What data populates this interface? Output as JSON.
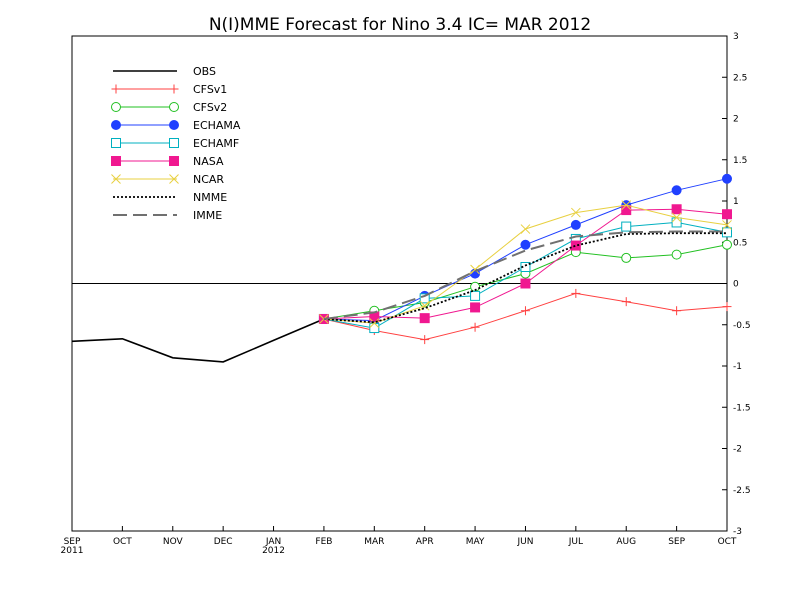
{
  "chart_data": {
    "type": "line",
    "title": "N(I)MME Forecast for Nino 3.4   IC= MAR 2012",
    "x_labels": [
      {
        "month": "SEP",
        "year": "2011"
      },
      {
        "month": "OCT",
        "year": ""
      },
      {
        "month": "NOV",
        "year": ""
      },
      {
        "month": "DEC",
        "year": ""
      },
      {
        "month": "JAN",
        "year": "2012"
      },
      {
        "month": "FEB",
        "year": ""
      },
      {
        "month": "MAR",
        "year": ""
      },
      {
        "month": "APR",
        "year": ""
      },
      {
        "month": "MAY",
        "year": ""
      },
      {
        "month": "JUN",
        "year": ""
      },
      {
        "month": "JUL",
        "year": ""
      },
      {
        "month": "AUG",
        "year": ""
      },
      {
        "month": "SEP",
        "year": ""
      },
      {
        "month": "OCT",
        "year": ""
      }
    ],
    "ylim": [
      -3,
      3
    ],
    "y_ticks": [
      "3",
      "2.5",
      "2",
      "1.5",
      "1",
      "0.5",
      "0",
      "-0.5",
      "-1",
      "-1.5",
      "-2",
      "-2.5",
      "-3"
    ],
    "y_axis_side": "right",
    "zero_line": true,
    "legend_position": "top-left",
    "series": [
      {
        "name": "OBS",
        "color": "#000000",
        "marker": "none",
        "dash": "solid",
        "start_index": 0,
        "values": [
          -0.7,
          -0.67,
          -0.9,
          -0.95,
          -0.69,
          -0.43
        ]
      },
      {
        "name": "CFSv1",
        "color": "#ff4040",
        "marker": "plus",
        "dash": "solid",
        "start_index": 5,
        "values": [
          -0.43,
          -0.57,
          -0.68,
          -0.53,
          -0.33,
          -0.12,
          -0.22,
          -0.33,
          -0.28
        ]
      },
      {
        "name": "CFSv2",
        "color": "#22c022",
        "marker": "circle-open",
        "dash": "solid",
        "start_index": 5,
        "values": [
          -0.43,
          -0.33,
          -0.23,
          -0.04,
          0.12,
          0.38,
          0.31,
          0.35,
          0.47
        ]
      },
      {
        "name": "ECHAMA",
        "color": "#2040ff",
        "marker": "circle-filled",
        "dash": "solid",
        "start_index": 5,
        "values": [
          -0.43,
          -0.45,
          -0.15,
          0.12,
          0.47,
          0.71,
          0.95,
          1.13,
          1.27
        ]
      },
      {
        "name": "ECHAMF",
        "color": "#00b0c0",
        "marker": "square-open",
        "dash": "solid",
        "start_index": 5,
        "values": [
          -0.43,
          -0.54,
          -0.18,
          -0.15,
          0.2,
          0.54,
          0.69,
          0.74,
          0.62
        ]
      },
      {
        "name": "NASA",
        "color": "#f01890",
        "marker": "square-filled",
        "dash": "solid",
        "start_index": 5,
        "values": [
          -0.43,
          -0.4,
          -0.42,
          -0.29,
          0.0,
          0.46,
          0.89,
          0.9,
          0.84
        ]
      },
      {
        "name": "NCAR",
        "color": "#e8d040",
        "marker": "cross",
        "dash": "solid",
        "start_index": 5,
        "values": [
          -0.43,
          -0.48,
          -0.27,
          0.17,
          0.66,
          0.86,
          0.95,
          0.8,
          0.71
        ]
      },
      {
        "name": "NMME",
        "color": "#000000",
        "marker": "none",
        "dash": "dotted",
        "start_index": 5,
        "values": [
          -0.43,
          -0.47,
          -0.3,
          -0.08,
          0.22,
          0.46,
          0.6,
          0.61,
          0.61
        ]
      },
      {
        "name": "IMME",
        "color": "#707070",
        "marker": "none",
        "dash": "longdash",
        "start_index": 5,
        "values": [
          -0.43,
          -0.35,
          -0.15,
          0.15,
          0.4,
          0.57,
          0.62,
          0.63,
          0.63
        ]
      }
    ]
  }
}
